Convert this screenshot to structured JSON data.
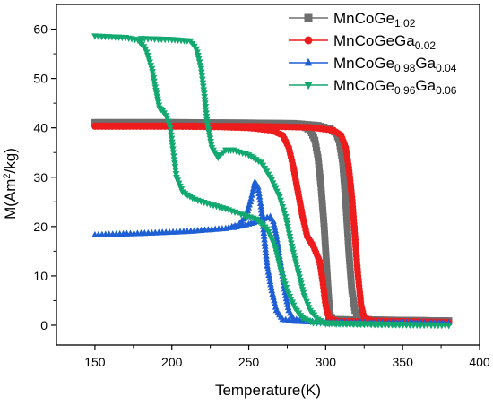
{
  "chart_data": {
    "type": "scatter",
    "title": "",
    "xlabel": "Temperature(K)",
    "ylabel_parts": [
      "M(Am",
      "2",
      "/kg)"
    ],
    "xlim": [
      125,
      400
    ],
    "ylim": [
      -4,
      65
    ],
    "xticks": [
      150,
      200,
      250,
      300,
      350,
      400
    ],
    "yticks": [
      0,
      10,
      20,
      30,
      40,
      50,
      60
    ],
    "grid": false,
    "legend_position": "top-right",
    "series": [
      {
        "name": "MnCoGe1.02",
        "legend": {
          "base": "MnCoGe",
          "sub1": "1.02",
          "mid": "",
          "sub2": ""
        },
        "color": "#6e6e6e",
        "marker": "square",
        "curves": [
          [
            [
              150,
              40.9
            ],
            [
              200,
              40.9
            ],
            [
              250,
              40.8
            ],
            [
              270,
              40.7
            ],
            [
              285,
              40.3
            ],
            [
              290,
              39.5
            ],
            [
              293,
              37.5
            ],
            [
              295,
              34
            ],
            [
              297,
              28
            ],
            [
              299,
              20
            ],
            [
              301,
              10
            ],
            [
              302,
              5
            ],
            [
              303,
              2
            ],
            [
              305,
              1.2
            ],
            [
              320,
              1.1
            ],
            [
              380,
              0.9
            ]
          ],
          [
            [
              150,
              41.1
            ],
            [
              200,
              41.1
            ],
            [
              250,
              41.0
            ],
            [
              280,
              40.9
            ],
            [
              295,
              40.5
            ],
            [
              303,
              39.8
            ],
            [
              307,
              38.8
            ],
            [
              309,
              37
            ],
            [
              311,
              33
            ],
            [
              313,
              25
            ],
            [
              315,
              15
            ],
            [
              317,
              7
            ],
            [
              319,
              3
            ],
            [
              322,
              1.4
            ],
            [
              330,
              1.1
            ],
            [
              380,
              0.9
            ]
          ]
        ]
      },
      {
        "name": "MnCoGeGa0.02",
        "legend": {
          "base": "MnCoGeGa",
          "sub1": "0.02",
          "mid": "",
          "sub2": ""
        },
        "color": "#ee1c1c",
        "marker": "circle",
        "curves": [
          [
            [
              150,
              40.3
            ],
            [
              200,
              40.3
            ],
            [
              230,
              40.2
            ],
            [
              250,
              40
            ],
            [
              265,
              39.5
            ],
            [
              272,
              38.5
            ],
            [
              276,
              36
            ],
            [
              279,
              32
            ],
            [
              282,
              27
            ],
            [
              285,
              22
            ],
            [
              288,
              18
            ],
            [
              292,
              16
            ],
            [
              296,
              13
            ],
            [
              298,
              9
            ],
            [
              300,
              4
            ],
            [
              302,
              1.5
            ],
            [
              308,
              0.8
            ],
            [
              380,
              0.6
            ]
          ],
          [
            [
              150,
              40.4
            ],
            [
              200,
              40.4
            ],
            [
              260,
              40.3
            ],
            [
              290,
              40.1
            ],
            [
              305,
              39.5
            ],
            [
              310,
              38.5
            ],
            [
              313,
              36
            ],
            [
              315,
              32
            ],
            [
              317,
              26
            ],
            [
              319,
              18
            ],
            [
              321,
              10
            ],
            [
              323,
              4
            ],
            [
              325,
              1.5
            ],
            [
              330,
              0.9
            ],
            [
              380,
              0.6
            ]
          ]
        ]
      },
      {
        "name": "MnCoGe0.98Ga0.04",
        "legend": {
          "base": "MnCoGe",
          "sub1": "0.98",
          "mid": "Ga",
          "sub2": "0.04"
        },
        "color": "#1f5fd6",
        "marker": "triangle-up",
        "curves": [
          [
            [
              150,
              18.3
            ],
            [
              180,
              18.6
            ],
            [
              210,
              19.0
            ],
            [
              235,
              19.6
            ],
            [
              243,
              20.3
            ],
            [
              248,
              22
            ],
            [
              251,
              25
            ],
            [
              254,
              29
            ],
            [
              256,
              28
            ],
            [
              258,
              24
            ],
            [
              260,
              18
            ],
            [
              262,
              12
            ],
            [
              265,
              7
            ],
            [
              268,
              3
            ],
            [
              272,
              1.2
            ],
            [
              280,
              0.8
            ],
            [
              300,
              0.6
            ],
            [
              380,
              0.5
            ]
          ],
          [
            [
              240,
              19.8
            ],
            [
              250,
              20.5
            ],
            [
              255,
              21
            ],
            [
              260,
              21.6
            ],
            [
              264,
              22
            ],
            [
              266,
              21
            ],
            [
              268,
              18
            ],
            [
              270,
              14
            ],
            [
              272,
              10
            ],
            [
              274,
              6
            ],
            [
              276,
              3
            ],
            [
              279,
              1.3
            ],
            [
              285,
              0.8
            ],
            [
              300,
              0.6
            ]
          ]
        ]
      },
      {
        "name": "MnCoGe0.96Ga0.06",
        "legend": {
          "base": "MnCoGe",
          "sub1": "0.96",
          "mid": "Ga",
          "sub2": "0.06"
        },
        "color": "#12a970",
        "marker": "triangle-down",
        "curves": [
          [
            [
              150,
              58.6
            ],
            [
              170,
              58.3
            ],
            [
              178,
              57.8
            ],
            [
              183,
              56
            ],
            [
              187,
              52
            ],
            [
              190,
              47
            ],
            [
              192,
              44
            ],
            [
              194,
              43.5
            ],
            [
              197,
              42
            ],
            [
              199,
              40
            ],
            [
              201,
              35
            ],
            [
              203,
              30
            ],
            [
              207,
              27
            ],
            [
              215,
              25.5
            ],
            [
              225,
              24.5
            ],
            [
              235,
              23.6
            ],
            [
              245,
              22.5
            ],
            [
              255,
              21.5
            ],
            [
              262,
              19.5
            ],
            [
              267,
              16
            ],
            [
              271,
              11
            ],
            [
              275,
              7
            ],
            [
              280,
              3.5
            ],
            [
              285,
              1.5
            ],
            [
              292,
              0.5
            ],
            [
              380,
              0
            ]
          ],
          [
            [
              180,
              58.1
            ],
            [
              200,
              57.9
            ],
            [
              212,
              57.6
            ],
            [
              216,
              56
            ],
            [
              219,
              52
            ],
            [
              221,
              47
            ],
            [
              223,
              41
            ],
            [
              226,
              36
            ],
            [
              230,
              34
            ],
            [
              235,
              35.5
            ],
            [
              240,
              35.5
            ],
            [
              250,
              34.5
            ],
            [
              258,
              33
            ],
            [
              264,
              30
            ],
            [
              270,
              26
            ],
            [
              274,
              22
            ],
            [
              278,
              16
            ],
            [
              282,
              11
            ],
            [
              286,
              6
            ],
            [
              290,
              3
            ],
            [
              295,
              1.2
            ],
            [
              300,
              0.3
            ],
            [
              380,
              0
            ]
          ]
        ]
      }
    ]
  }
}
